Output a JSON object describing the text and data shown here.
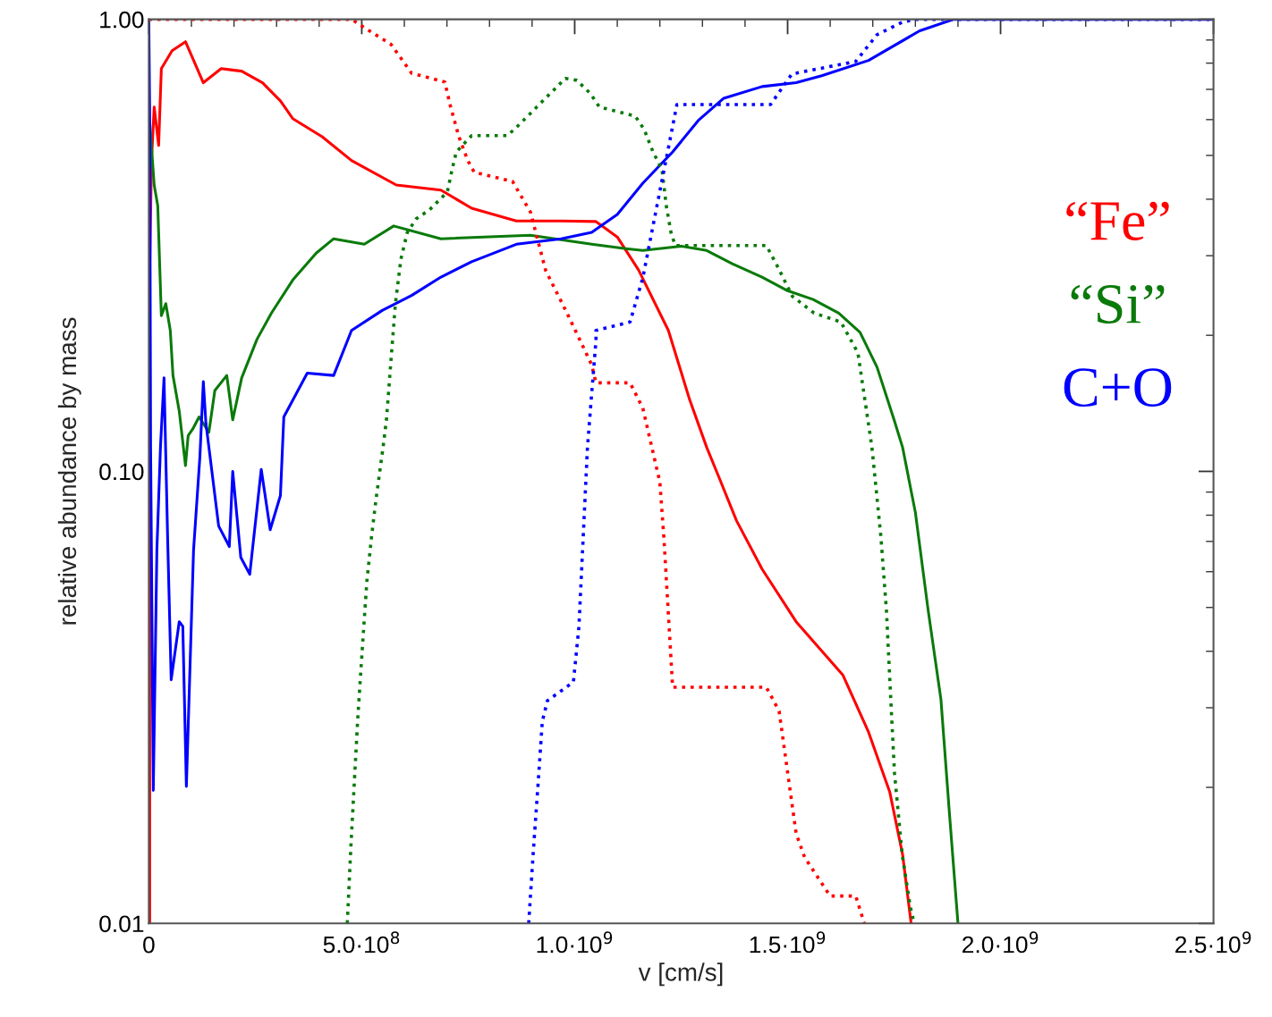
{
  "chart_data": {
    "type": "line",
    "xlabel": "v [cm/s]",
    "ylabel": "relative abundance by mass",
    "log": "y",
    "grid": false,
    "legend": "right",
    "xlim": [
      0,
      2500000000.0
    ],
    "xticks": [
      0,
      {
        "value": 500000000.0,
        "label": "5.0·10$^{8}$"
      },
      {
        "value": 1000000000.0,
        "label": "1.0·10$^{9}$"
      },
      {
        "value": 1500000000.0,
        "label": "1.5·10$^{9}$"
      },
      {
        "value": 2000000000.0,
        "label": "2.0·10$^{9}$"
      },
      {
        "value": 2500000000.0,
        "label": "2.5·10$^{9}$"
      }
    ],
    "ylim": [
      0.01,
      1
    ],
    "yticks": [
      {
        "value": 0.01,
        "label": "0.01"
      },
      {
        "value": 0.1,
        "label": "0.10"
      },
      {
        "value": 1,
        "label": "1.00"
      }
    ],
    "series": [
      {
        "name": "“Fe”",
        "color": "#ff0000",
        "line_style": "solid",
        "x": [
          2100000.0,
          2100000.0,
          6300000.0,
          12600000.0,
          23100000.0,
          29400000.0,
          54600000.0,
          86100000.0,
          128000000.0,
          170000000.0,
          218000000.0,
          267000000.0,
          309000000.0,
          338000000.0,
          407000000.0,
          476000000.0,
          581000000.0,
          686000000.0,
          758000000.0,
          863000000.0,
          968000000.0,
          1050000000.0,
          1100000000.0,
          1150000000.0,
          1220000000.0,
          1270000000.0,
          1310000000.0,
          1340000000.0,
          1380000000.0,
          1440000000.0,
          1520000000.0,
          1630000000.0,
          1690000000.0,
          1740000000.0,
          1770000000.0,
          1790000000.0
        ],
        "values": [
          0.01,
          0.282,
          0.487,
          0.64,
          0.526,
          0.778,
          0.852,
          0.892,
          0.724,
          0.778,
          0.768,
          0.724,
          0.66,
          0.603,
          0.55,
          0.487,
          0.43,
          0.419,
          0.382,
          0.358,
          0.358,
          0.357,
          0.33,
          0.279,
          0.205,
          0.144,
          0.113,
          0.0964,
          0.0778,
          0.0608,
          0.0465,
          0.0354,
          0.0265,
          0.0195,
          0.0142,
          0.01
        ]
      },
      {
        "name": "“Si”",
        "color": "#0a7a0a",
        "line_style": "solid",
        "x": [
          2100000.0,
          12600000.0,
          21000000.0,
          29400000.0,
          39900000.0,
          50400000.0,
          56700000.0,
          71400000.0,
          86100000.0,
          92400000.0,
          103000000.0,
          118000000.0,
          141000000.0,
          155000000.0,
          183000000.0,
          197000000.0,
          218000000.0,
          254000000.0,
          288000000.0,
          338000000.0,
          393000000.0,
          434000000.0,
          506000000.0,
          575000000.0,
          686000000.0,
          896000000.0,
          1040000000.0,
          1120000000.0,
          1160000000.0,
          1250000000.0,
          1310000000.0,
          1370000000.0,
          1440000000.0,
          1500000000.0,
          1560000000.0,
          1620000000.0,
          1670000000.0,
          1710000000.0,
          1750000000.0,
          1770000000.0,
          1800000000.0,
          1830000000.0,
          1860000000.0,
          1880000000.0,
          1900000000.0
        ],
        "values": [
          0.592,
          0.43,
          0.387,
          0.221,
          0.235,
          0.205,
          0.163,
          0.136,
          0.103,
          0.12,
          0.124,
          0.132,
          0.122,
          0.151,
          0.163,
          0.13,
          0.161,
          0.196,
          0.224,
          0.265,
          0.304,
          0.327,
          0.318,
          0.349,
          0.327,
          0.333,
          0.318,
          0.311,
          0.308,
          0.315,
          0.308,
          0.288,
          0.269,
          0.251,
          0.24,
          0.224,
          0.203,
          0.17,
          0.13,
          0.113,
          0.0811,
          0.0493,
          0.0313,
          0.0175,
          0.01
        ]
      },
      {
        "name": "C+O",
        "color": "#0000ff",
        "line_style": "solid",
        "x": [
          0,
          2100000.0,
          4200000.0,
          10500000.0,
          18900000.0,
          27300000.0,
          35700000.0,
          44100000.0,
          52500000.0,
          71400000.0,
          79800000.0,
          88200000.0,
          105000000.0,
          120000000.0,
          128000000.0,
          134000000.0,
          164000000.0,
          189000000.0,
          197000000.0,
          216000000.0,
          237000000.0,
          264000000.0,
          285000000.0,
          309000000.0,
          317000000.0,
          372000000.0,
          434000000.0,
          476000000.0,
          548000000.0,
          617000000.0,
          686000000.0,
          758000000.0,
          863000000.0,
          968000000.0,
          1040000000.0,
          1100000000.0,
          1160000000.0,
          1230000000.0,
          1290000000.0,
          1350000000.0,
          1440000000.0,
          1520000000.0,
          1580000000.0,
          1690000000.0,
          1810000000.0,
          1890000000.0,
          2500000000.0
        ],
        "values": [
          1,
          0.611,
          0.113,
          0.0197,
          0.0669,
          0.113,
          0.161,
          0.0717,
          0.0346,
          0.0465,
          0.0454,
          0.0201,
          0.0669,
          0.108,
          0.158,
          0.128,
          0.0757,
          0.0682,
          0.1,
          0.0645,
          0.0592,
          0.101,
          0.0743,
          0.0884,
          0.132,
          0.165,
          0.163,
          0.205,
          0.227,
          0.245,
          0.269,
          0.291,
          0.318,
          0.327,
          0.338,
          0.37,
          0.434,
          0.509,
          0.597,
          0.669,
          0.71,
          0.724,
          0.75,
          0.811,
          0.943,
          1,
          1
        ]
      },
      {
        "color": "#ff0000",
        "line_style": "dotted",
        "x": [
          0,
          476000000.0,
          518000000.0,
          569000000.0,
          617000000.0,
          695000000.0,
          707000000.0,
          728000000.0,
          749000000.0,
          764000000.0,
          854000000.0,
          896000000.0,
          932000000.0,
          982000000.0,
          1040000000.0,
          1050000000.0,
          1130000000.0,
          1160000000.0,
          1200000000.0,
          1210000000.0,
          1230000000.0,
          1450000000.0,
          1480000000.0,
          1520000000.0,
          1540000000.0,
          1600000000.0,
          1660000000.0,
          1680000000.0
        ],
        "values": [
          1,
          1,
          0.943,
          0.88,
          0.76,
          0.727,
          0.649,
          0.55,
          0.487,
          0.459,
          0.438,
          0.375,
          0.278,
          0.224,
          0.172,
          0.157,
          0.157,
          0.138,
          0.0947,
          0.0701,
          0.0333,
          0.0333,
          0.0295,
          0.0158,
          0.014,
          0.0115,
          0.0115,
          0.01
        ]
      },
      {
        "color": "#0a7a0a",
        "line_style": "dotted",
        "x": [
          466000000.0,
          474000000.0,
          483000000.0,
          491000000.0,
          502000000.0,
          512000000.0,
          523000000.0,
          533000000.0,
          550000000.0,
          558000000.0,
          569000000.0,
          579000000.0,
          592000000.0,
          607000000.0,
          628000000.0,
          659000000.0,
          701000000.0,
          712000000.0,
          722000000.0,
          758000000.0,
          842000000.0,
          869000000.0,
          911000000.0,
          953000000.0,
          978000000.0,
          1005000000.0,
          1037000000.0,
          1058000000.0,
          1100000000.0,
          1142000000.0,
          1163000000.0,
          1184000000.0,
          1205000000.0,
          1215000000.0,
          1226000000.0,
          1236000000.0,
          1450000000.0,
          1478000000.0,
          1511000000.0,
          1562000000.0,
          1625000000.0,
          1665000000.0,
          1698000000.0,
          1719000000.0,
          1732000000.0,
          1742000000.0,
          1751000000.0,
          1769000000.0,
          1788000000.0,
          1797000000.0
        ],
        "values": [
          0.01,
          0.0145,
          0.0209,
          0.0288,
          0.0415,
          0.0571,
          0.0717,
          0.086,
          0.113,
          0.13,
          0.178,
          0.235,
          0.295,
          0.338,
          0.362,
          0.379,
          0.415,
          0.465,
          0.509,
          0.553,
          0.553,
          0.584,
          0.64,
          0.701,
          0.74,
          0.733,
          0.685,
          0.64,
          0.625,
          0.611,
          0.571,
          0.509,
          0.465,
          0.387,
          0.338,
          0.316,
          0.316,
          0.282,
          0.244,
          0.224,
          0.214,
          0.183,
          0.113,
          0.0717,
          0.0493,
          0.0316,
          0.0215,
          0.0142,
          0.0109,
          0.01
        ]
      },
      {
        "color": "#0000ff",
        "line_style": "dotted",
        "x": [
          892000000.0,
          903000000.0,
          913000000.0,
          924000000.0,
          936000000.0,
          997000000.0,
          1010000000.0,
          1020000000.0,
          1030000000.0,
          1040000000.0,
          1050000000.0,
          1050000000.0,
          1130000000.0,
          1160000000.0,
          1200000000.0,
          1220000000.0,
          1240000000.0,
          1460000000.0,
          1510000000.0,
          1660000000.0,
          1710000000.0,
          1770000000.0,
          1800000000.0,
          2500000000.0
        ],
        "values": [
          0.01,
          0.0145,
          0.0197,
          0.028,
          0.0311,
          0.0342,
          0.0454,
          0.0717,
          0.113,
          0.149,
          0.195,
          0.205,
          0.214,
          0.268,
          0.417,
          0.519,
          0.648,
          0.648,
          0.757,
          0.807,
          0.925,
          0.986,
          1.0,
          1.0
        ]
      }
    ]
  }
}
